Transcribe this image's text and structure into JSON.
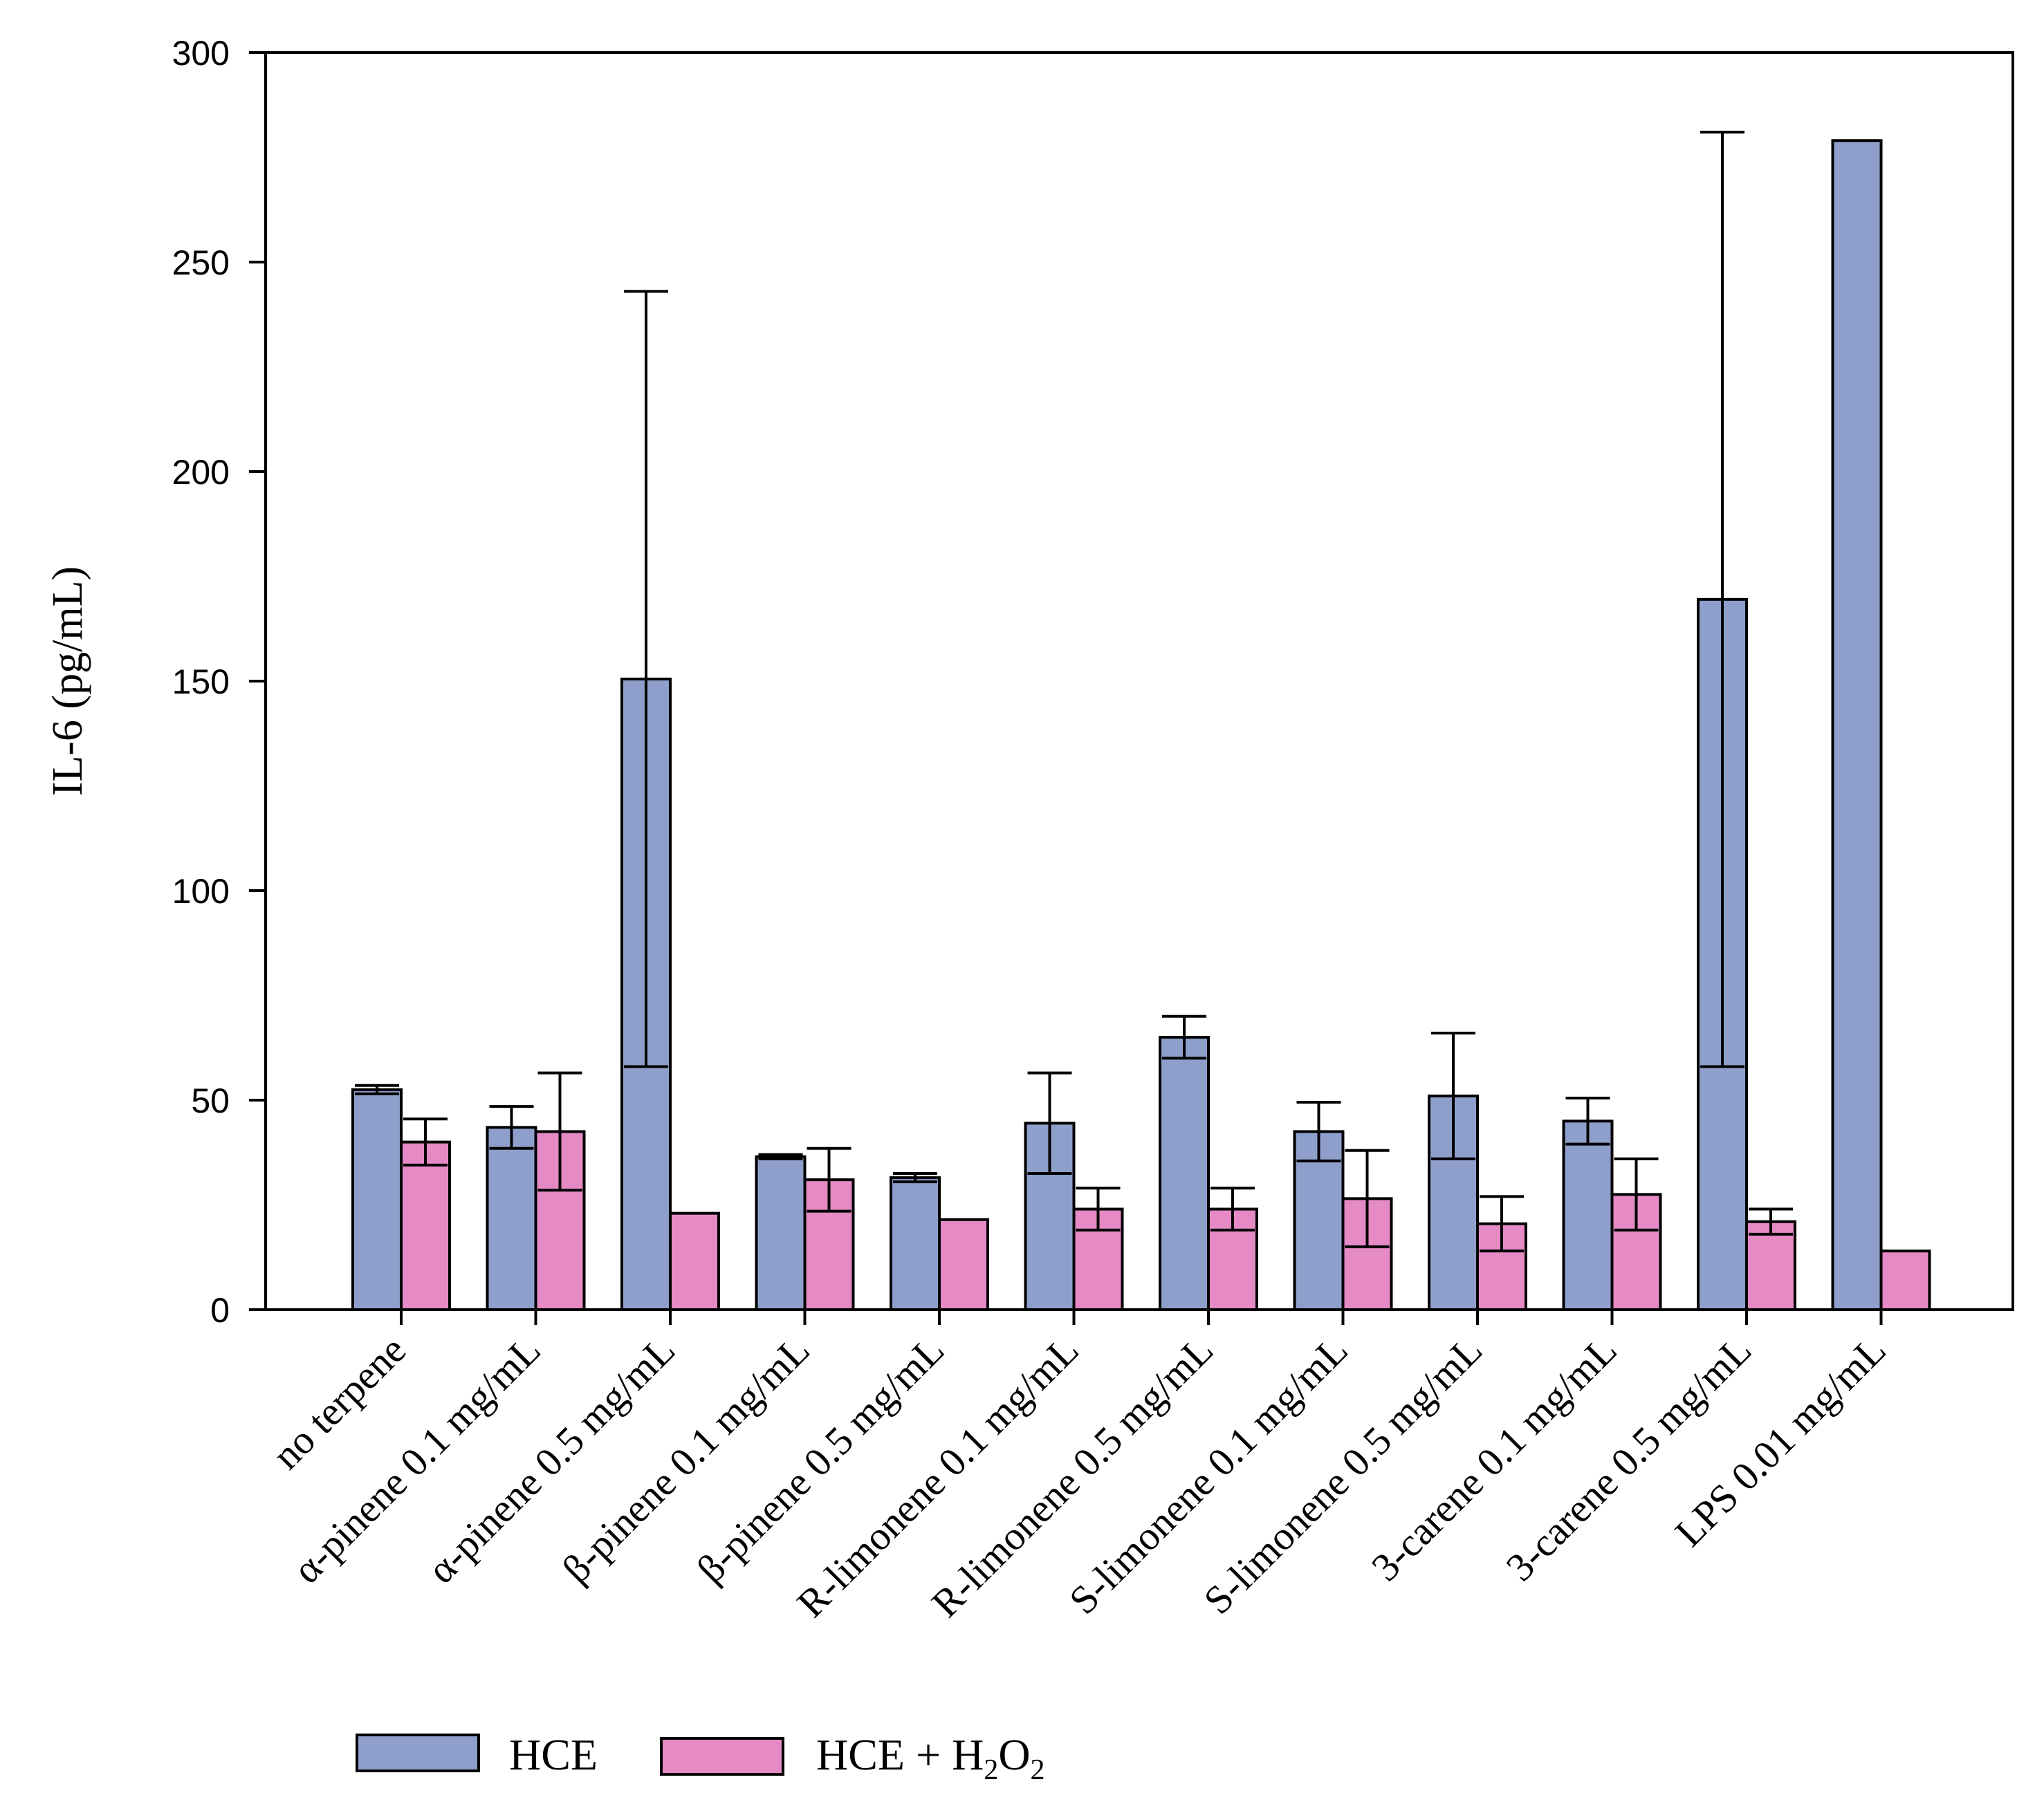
{
  "chart_data": {
    "type": "bar",
    "title": "",
    "xlabel": "",
    "ylabel": "IL-6 (pg/mL)",
    "ylim": [
      0,
      300
    ],
    "yticks": [
      0,
      50,
      100,
      150,
      200,
      250,
      300
    ],
    "grid": false,
    "categories": [
      "no terpene",
      "α-pinene 0.1 mg/mL",
      "α-pinene 0.5 mg/mL",
      "β-pinene 0.1 mg/mL",
      "β-pinene 0.5 mg/mL",
      "R-limonene 0.1 mg/mL",
      "R-limonene 0.5 mg/mL",
      "S-limonene 0.1 mg/mL",
      "S-limonene 0.5 mg/mL",
      "3-carene 0.1 mg/mL",
      "3-carene 0.5 mg/mL",
      "LPS 0.01 mg/mL"
    ],
    "series": [
      {
        "name": "HCE",
        "color": "#8f9fcc",
        "values": [
          52.5,
          43.5,
          150.5,
          36.5,
          31.5,
          44.5,
          65.0,
          42.5,
          51.0,
          45.0,
          169.5,
          279.0
        ],
        "errors": [
          1.0,
          5.0,
          92.5,
          0.5,
          1.0,
          12.0,
          5.0,
          7.0,
          15.0,
          5.5,
          111.5,
          null
        ]
      },
      {
        "name": "HCE + H2O2",
        "legend_main": "HCE + H",
        "legend_sub1": "2",
        "legend_mid": "O",
        "legend_sub2": "2",
        "color": "#e58ac4",
        "values": [
          40.0,
          42.5,
          23.0,
          31.0,
          21.5,
          24.0,
          24.0,
          26.5,
          20.5,
          27.5,
          21.0,
          14.0
        ],
        "errors": [
          5.5,
          14.0,
          null,
          7.5,
          null,
          5.0,
          5.0,
          11.5,
          6.5,
          8.5,
          3.0,
          null
        ]
      }
    ],
    "legend": {
      "position": "bottom-left",
      "items": [
        "HCE",
        "HCE + H2O2"
      ]
    }
  }
}
